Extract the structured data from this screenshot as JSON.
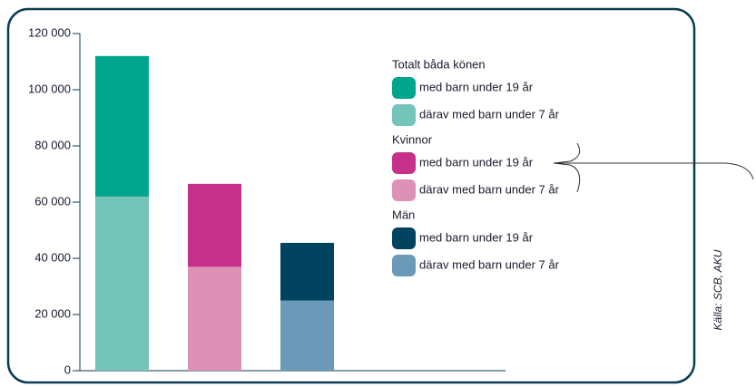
{
  "chart_data": {
    "type": "bar",
    "ylim": [
      0,
      120000
    ],
    "yticks": [
      0,
      {
        "value": 20000,
        "label": "20 000"
      },
      {
        "value": 40000,
        "label": "40 000"
      },
      {
        "value": 60000,
        "label": "60 000"
      },
      {
        "value": 80000,
        "label": "80 000"
      },
      {
        "value": 100000,
        "label": "100 000"
      },
      {
        "value": 120000,
        "label": "120 000"
      }
    ],
    "groups": [
      {
        "name": "Totalt båda könen",
        "series": [
          {
            "name": "med barn under 19 år",
            "color": "#00a58e",
            "value": 112000
          },
          {
            "name": "därav med barn under 7 år",
            "color": "#74c4b9",
            "value": 62000
          }
        ]
      },
      {
        "name": "Kvinnor",
        "series": [
          {
            "name": "med barn under 19 år",
            "color": "#c5318a",
            "value": 66500
          },
          {
            "name": "därav med barn under 7 år",
            "color": "#de91b7",
            "value": 37000
          }
        ]
      },
      {
        "name": "Män",
        "series": [
          {
            "name": "med barn under 19 år",
            "color": "#00435f",
            "value": 45500
          },
          {
            "name": "därav med barn under 7 år",
            "color": "#6a9ab8",
            "value": 25000
          }
        ]
      }
    ],
    "source": "Källa: SCB, AKU"
  }
}
